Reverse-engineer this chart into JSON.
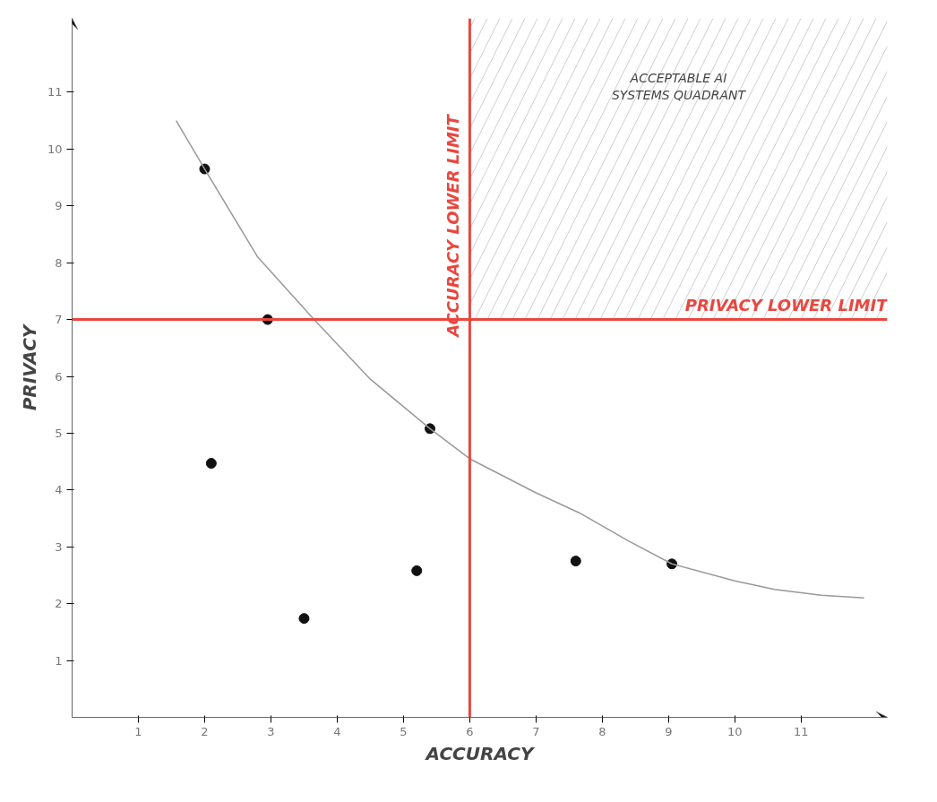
{
  "chart_data": {
    "type": "scatter",
    "xlabel": "ACCURACY",
    "ylabel": "PRIVACY",
    "xlim": [
      0,
      12.3
    ],
    "ylim": [
      0,
      12.3
    ],
    "xticks": [
      1,
      2,
      3,
      4,
      5,
      6,
      7,
      8,
      9,
      10,
      11
    ],
    "yticks": [
      1,
      2,
      3,
      4,
      5,
      6,
      7,
      8,
      9,
      10,
      11
    ],
    "grid": false,
    "marker": "circle",
    "series": [
      {
        "color": "#111111",
        "x": [
          2.0,
          2.95,
          5.4,
          2.1,
          5.2,
          3.5,
          7.6,
          9.05
        ],
        "values": [
          9.65,
          7.0,
          5.08,
          4.47,
          2.58,
          1.74,
          2.75,
          2.7
        ]
      },
      {
        "type": "line",
        "color": "#999999",
        "marker": "none",
        "x": [
          1.57,
          2.0,
          2.8,
          3.65,
          4.5,
          5.4,
          6.0,
          7.0,
          7.65,
          8.4,
          9.05,
          10.0,
          10.6,
          11.3,
          11.95
        ],
        "values": [
          10.5,
          9.65,
          8.1,
          7.0,
          5.95,
          5.08,
          4.55,
          3.95,
          3.6,
          3.1,
          2.7,
          2.4,
          2.25,
          2.15,
          2.1
        ]
      }
    ],
    "ref_lines": [
      {
        "axis": "x",
        "value": 6,
        "label": "ACCURACY LOWER LIMIT",
        "color": "#e8473f"
      },
      {
        "axis": "y",
        "value": 7,
        "label": "PRIVACY LOWER LIMIT",
        "color": "#e8473f"
      }
    ],
    "bands": [
      {
        "axis": "x",
        "from": 6,
        "to": 12.3,
        "label": "ACCEPTABLE AI SYSTEMS QUADRANT",
        "color": "#888888"
      }
    ]
  }
}
